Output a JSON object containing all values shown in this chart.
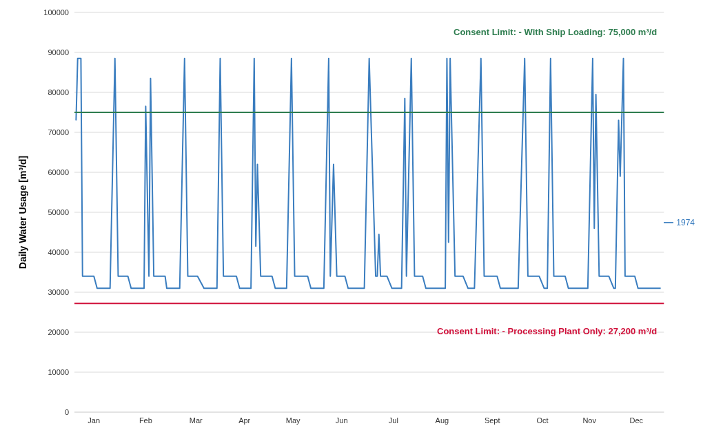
{
  "chart_data": {
    "type": "line",
    "ylabel": "Daily Water Usage  [m³/d]",
    "x": [
      "--01-02",
      "--01-03",
      "--01-05",
      "--01-06",
      "--01-13",
      "--01-15",
      "--01-23",
      "--01-26",
      "--01-28",
      "--02-03",
      "--02-05",
      "--02-13",
      "--02-14",
      "--02-16",
      "--02-17",
      "--02-19",
      "--02-26",
      "--02-27",
      "--03-07",
      "--03-10",
      "--03-12",
      "--03-18",
      "--03-22",
      "--03-30",
      "--04-01",
      "--04-03",
      "--04-11",
      "--04-13",
      "--04-20",
      "--04-22",
      "--04-23",
      "--04-24",
      "--04-26",
      "--05-03",
      "--05-05",
      "--05-12",
      "--05-15",
      "--05-17",
      "--05-25",
      "--05-27",
      "--06-04",
      "--06-07",
      "--06-08",
      "--06-10",
      "--06-12",
      "--06-17",
      "--06-19",
      "--06-29",
      "--07-02",
      "--07-06",
      "--07-07",
      "--07-08",
      "--07-09",
      "--07-13",
      "--07-16",
      "--07-22",
      "--07-24",
      "--07-25",
      "--07-28",
      "--07-30",
      "--08-04",
      "--08-06",
      "--08-18",
      "--08-19",
      "--08-20",
      "--08-21",
      "--08-24",
      "--08-29",
      "--09-01",
      "--09-05",
      "--09-09",
      "--09-11",
      "--09-19",
      "--09-21",
      "--10-02",
      "--10-06",
      "--10-08",
      "--10-15",
      "--10-18",
      "--10-20",
      "--10-22",
      "--10-24",
      "--10-31",
      "--11-02",
      "--11-14",
      "--11-17",
      "--11-18",
      "--11-19",
      "--11-21",
      "--11-27",
      "--11-30",
      "--12-01",
      "--12-03",
      "--12-04",
      "--12-06",
      "--12-07",
      "--12-13",
      "--12-15",
      "--12-29"
    ],
    "series": [
      {
        "name": "1974",
        "color": "#3a7dbf",
        "values": [
          73000,
          88500,
          88500,
          34000,
          34000,
          31000,
          31000,
          88500,
          34000,
          34000,
          31000,
          31000,
          76500,
          34000,
          83500,
          34000,
          34000,
          31000,
          31000,
          88500,
          34000,
          34000,
          31000,
          31000,
          88500,
          34000,
          34000,
          31000,
          31000,
          88500,
          41500,
          62000,
          34000,
          34000,
          31000,
          31000,
          88500,
          34000,
          34000,
          31000,
          31000,
          88500,
          34000,
          62000,
          34000,
          34000,
          31000,
          31000,
          88500,
          34000,
          34000,
          44500,
          34000,
          34000,
          31000,
          31000,
          78500,
          34000,
          88500,
          34000,
          34000,
          31000,
          31000,
          88500,
          42500,
          88500,
          34000,
          34000,
          31000,
          31000,
          88500,
          34000,
          34000,
          31000,
          31000,
          88500,
          34000,
          34000,
          31000,
          31000,
          88500,
          34000,
          34000,
          31000,
          31000,
          88500,
          46000,
          79500,
          34000,
          34000,
          31000,
          31000,
          73000,
          59000,
          88500,
          34000,
          34000,
          31000,
          31000
        ]
      }
    ],
    "xlim": [
      "--01-01",
      "--12-31"
    ],
    "xticks": [
      {
        "value": "--01-13",
        "label": "Jan"
      },
      {
        "value": "--02-14",
        "label": "Feb"
      },
      {
        "value": "--03-17",
        "label": "Mar"
      },
      {
        "value": "--04-16",
        "label": "Apr"
      },
      {
        "value": "--05-16",
        "label": "May"
      },
      {
        "value": "--06-15",
        "label": "Jun"
      },
      {
        "value": "--07-17",
        "label": "Jul"
      },
      {
        "value": "--08-16",
        "label": "Aug"
      },
      {
        "value": "--09-16",
        "label": "Sept"
      },
      {
        "value": "--10-17",
        "label": "Oct"
      },
      {
        "value": "--11-15",
        "label": "Nov"
      },
      {
        "value": "--12-14",
        "label": "Dec"
      }
    ],
    "ylim": [
      0,
      100000
    ],
    "yticks": [
      0,
      10000,
      20000,
      30000,
      40000,
      50000,
      60000,
      70000,
      80000,
      90000,
      100000
    ],
    "grid": "y",
    "legend": "right",
    "marker": "none",
    "line_style": "solid",
    "ref_lines": [
      {
        "axis": "y",
        "value": 75000,
        "label": "Consent Limit: - With Ship Loading: 75,000 m³/d",
        "color": "#2e7d4f"
      },
      {
        "axis": "y",
        "value": 27200,
        "label": "Consent Limit: - Processing Plant Only: 27,200 m³/d",
        "color": "#d0103a"
      }
    ]
  }
}
